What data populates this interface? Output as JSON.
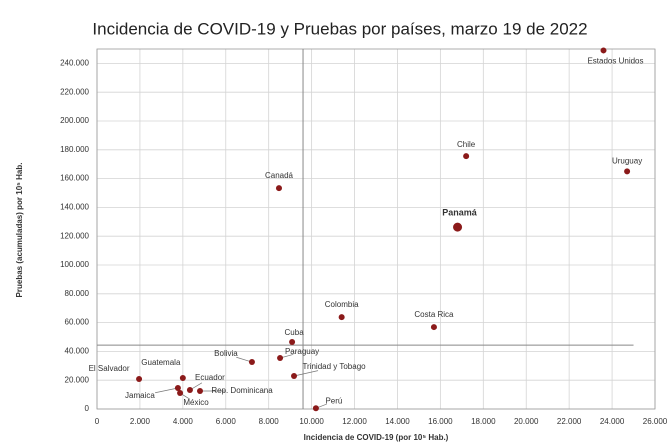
{
  "chart_data": {
    "type": "scatter",
    "title": "Incidencia de COVID-19 y Pruebas por países, marzo 19 de 2022",
    "xlabel": "Incidencia de COVID-19 (por 10⁵ Hab.)",
    "ylabel": "Pruebas (acumuladas) por 10⁵ Hab.",
    "color": "#8b1a1a",
    "grid": true,
    "xlim": [
      0,
      26000
    ],
    "ylim": [
      0,
      250000
    ],
    "xticks": [
      0,
      {
        "value": 2000,
        "label": "2.000"
      },
      {
        "value": 4000,
        "label": "4.000"
      },
      {
        "value": 6000,
        "label": "6.000"
      },
      {
        "value": 8000,
        "label": "8.000"
      },
      {
        "value": 10000,
        "label": "10.000"
      },
      {
        "value": 12000,
        "label": "12.000"
      },
      {
        "value": 14000,
        "label": "14.000"
      },
      {
        "value": 16000,
        "label": "16.000"
      },
      {
        "value": 18000,
        "label": "18.000"
      },
      {
        "value": 20000,
        "label": "20.000"
      },
      {
        "value": 22000,
        "label": "22.000"
      },
      {
        "value": 24000,
        "label": "24.000"
      },
      {
        "value": 26000,
        "label": "26.000"
      }
    ],
    "yticks": [
      0,
      {
        "value": 20000,
        "label": "20.000"
      },
      {
        "value": 40000,
        "label": "40.000"
      },
      {
        "value": 60000,
        "label": "60.000"
      },
      {
        "value": 80000,
        "label": "80.000"
      },
      {
        "value": 100000,
        "label": "100.000"
      },
      {
        "value": 120000,
        "label": "120.000"
      },
      {
        "value": 140000,
        "label": "140.000"
      },
      {
        "value": 160000,
        "label": "160.000"
      },
      {
        "value": 180000,
        "label": "180.000"
      },
      {
        "value": 200000,
        "label": "200.000"
      },
      {
        "value": 220000,
        "label": "220.000"
      },
      {
        "value": 240000,
        "label": "240.000"
      }
    ],
    "reference_x": 9600,
    "reference_y": 44400,
    "points": [
      {
        "label": "Estados Unidos",
        "x": 23600,
        "y": 249000
      },
      {
        "label": "Chile",
        "x": 17200,
        "y": 175600
      },
      {
        "label": "Uruguay",
        "x": 24700,
        "y": 165000
      },
      {
        "label": "Canadá",
        "x": 8480,
        "y": 153400
      },
      {
        "label": "Panamá",
        "x": 16800,
        "y": 126300,
        "bold": true
      },
      {
        "label": "Colombia",
        "x": 11400,
        "y": 63800
      },
      {
        "label": "Costa Rica",
        "x": 15700,
        "y": 56900
      },
      {
        "label": "Cuba",
        "x": 9090,
        "y": 46500
      },
      {
        "label": "Paraguay",
        "x": 8530,
        "y": 35400
      },
      {
        "label": "Bolivia",
        "x": 7220,
        "y": 32600
      },
      {
        "label": "Trinidad y Tobago",
        "x": 9180,
        "y": 22900
      },
      {
        "label": "Perú",
        "x": 10200,
        "y": 500
      },
      {
        "label": "El Salvador",
        "x": 1960,
        "y": 20800
      },
      {
        "label": "Guatemala",
        "x": 4000,
        "y": 21500
      },
      {
        "label": "Ecuador",
        "x": 4330,
        "y": 13200
      },
      {
        "label": "Rep. Dominicana",
        "x": 4800,
        "y": 12500
      },
      {
        "label": "Jamaica",
        "x": 3770,
        "y": 14600
      },
      {
        "label": "México",
        "x": 3870,
        "y": 11100
      }
    ]
  }
}
